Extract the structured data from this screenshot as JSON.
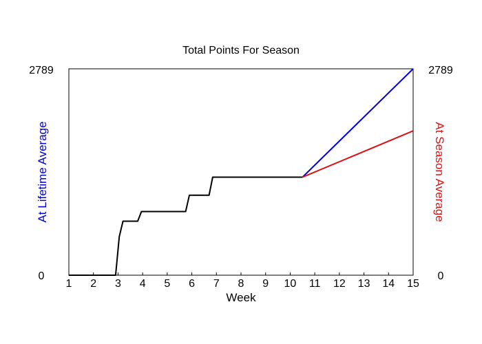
{
  "chart_data": {
    "type": "line",
    "title": "Total Points For Season",
    "xlabel": "Week",
    "ylabel_left": "At Lifetime Average",
    "ylabel_right": "At Season Average",
    "xlim": [
      1,
      15
    ],
    "ylim": [
      0,
      2789
    ],
    "x_ticks": [
      "1",
      "2",
      "3",
      "4",
      "5",
      "6",
      "7",
      "8",
      "9",
      "10",
      "11",
      "12",
      "13",
      "14",
      "15"
    ],
    "y_left_ticks": [
      "0",
      "2789"
    ],
    "y_right_ticks": [
      "0",
      "2789"
    ],
    "grid": false,
    "colors": {
      "actual": "#000000",
      "lifetime": "#0000dd",
      "season": "#dd1111"
    },
    "series": [
      {
        "key": "actual",
        "x": [
          1,
          2.9,
          3.05,
          3.2,
          3.8,
          3.95,
          5.75,
          5.9,
          6.7,
          6.85,
          10.5
        ],
        "y": [
          0,
          0,
          520,
          730,
          730,
          860,
          860,
          1080,
          1080,
          1325,
          1325
        ]
      },
      {
        "key": "lifetime",
        "name": "At Lifetime Average",
        "x": [
          10.5,
          15
        ],
        "y": [
          1325,
          2789
        ]
      },
      {
        "key": "season",
        "name": "At Season Average",
        "x": [
          10.5,
          15
        ],
        "y": [
          1325,
          1950
        ]
      }
    ]
  }
}
